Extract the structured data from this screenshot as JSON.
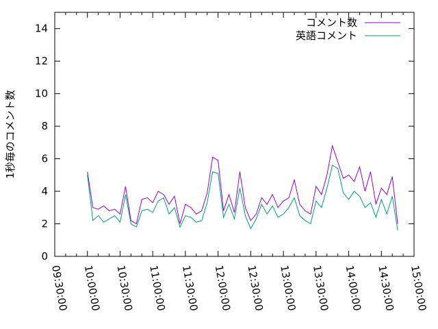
{
  "chart_data": {
    "type": "line",
    "ylabel": "1秒毎のコメント数",
    "x": [
      "10:00:00",
      "10:05:00",
      "10:10:00",
      "10:15:00",
      "10:20:00",
      "10:25:00",
      "10:30:00",
      "10:35:00",
      "10:40:00",
      "10:45:00",
      "10:50:00",
      "10:55:00",
      "11:00:00",
      "11:05:00",
      "11:10:00",
      "11:15:00",
      "11:20:00",
      "11:25:00",
      "11:30:00",
      "11:35:00",
      "11:40:00",
      "11:45:00",
      "11:50:00",
      "11:55:00",
      "12:00:00",
      "12:05:00",
      "12:10:00",
      "12:15:00",
      "12:20:00",
      "12:25:00",
      "12:30:00",
      "12:35:00",
      "12:40:00",
      "12:45:00",
      "12:50:00",
      "12:55:00",
      "13:00:00",
      "13:05:00",
      "13:10:00",
      "13:15:00",
      "13:20:00",
      "13:25:00",
      "13:30:00",
      "13:35:00",
      "13:40:00",
      "13:45:00",
      "13:50:00",
      "13:55:00",
      "14:00:00",
      "14:05:00",
      "14:10:00",
      "14:15:00",
      "14:20:00",
      "14:25:00",
      "14:30:00",
      "14:35:00",
      "14:40:00",
      "14:45:00"
    ],
    "series": [
      {
        "name": "コメント数",
        "color": "#9400d3",
        "values": [
          5.2,
          3.0,
          2.9,
          3.1,
          2.8,
          2.9,
          2.6,
          4.3,
          2.2,
          2.0,
          3.5,
          3.6,
          3.3,
          4.0,
          3.8,
          3.2,
          3.7,
          2.0,
          3.2,
          3.0,
          2.6,
          2.8,
          3.9,
          6.1,
          5.9,
          2.8,
          3.8,
          2.7,
          5.2,
          3.0,
          2.2,
          2.6,
          3.6,
          3.2,
          3.8,
          3.0,
          3.4,
          3.6,
          4.7,
          3.2,
          2.8,
          2.6,
          4.3,
          3.8,
          5.0,
          6.8,
          5.8,
          4.8,
          5.0,
          4.6,
          5.5,
          4.0,
          5.2,
          3.2,
          4.2,
          3.8,
          4.9,
          2.0
        ]
      },
      {
        "name": "英語コメント",
        "color": "#009e73",
        "values": [
          5.0,
          2.2,
          2.5,
          2.1,
          2.3,
          2.5,
          2.1,
          3.8,
          2.0,
          1.8,
          2.8,
          2.9,
          2.7,
          3.4,
          3.6,
          2.6,
          3.0,
          1.8,
          2.5,
          2.4,
          2.1,
          2.2,
          3.3,
          5.2,
          5.1,
          2.4,
          3.2,
          2.3,
          4.2,
          2.5,
          1.7,
          2.3,
          3.2,
          2.6,
          3.1,
          2.4,
          2.6,
          3.0,
          3.6,
          2.5,
          2.2,
          2.0,
          3.4,
          3.0,
          4.2,
          5.6,
          5.4,
          3.9,
          3.5,
          4.0,
          3.7,
          3.0,
          3.3,
          2.4,
          3.5,
          2.6,
          3.7,
          1.6
        ]
      }
    ],
    "xlim": [
      "09:30:00",
      "15:00:00"
    ],
    "xticks": [
      "09:30:00",
      "10:00:00",
      "10:30:00",
      "11:00:00",
      "11:30:00",
      "12:00:00",
      "12:30:00",
      "13:00:00",
      "13:30:00",
      "14:00:00",
      "14:30:00",
      "15:00:00"
    ],
    "ylim": [
      0,
      15
    ],
    "yticks": [
      0,
      2,
      4,
      6,
      8,
      10,
      12,
      14
    ],
    "legend": "upper right"
  }
}
